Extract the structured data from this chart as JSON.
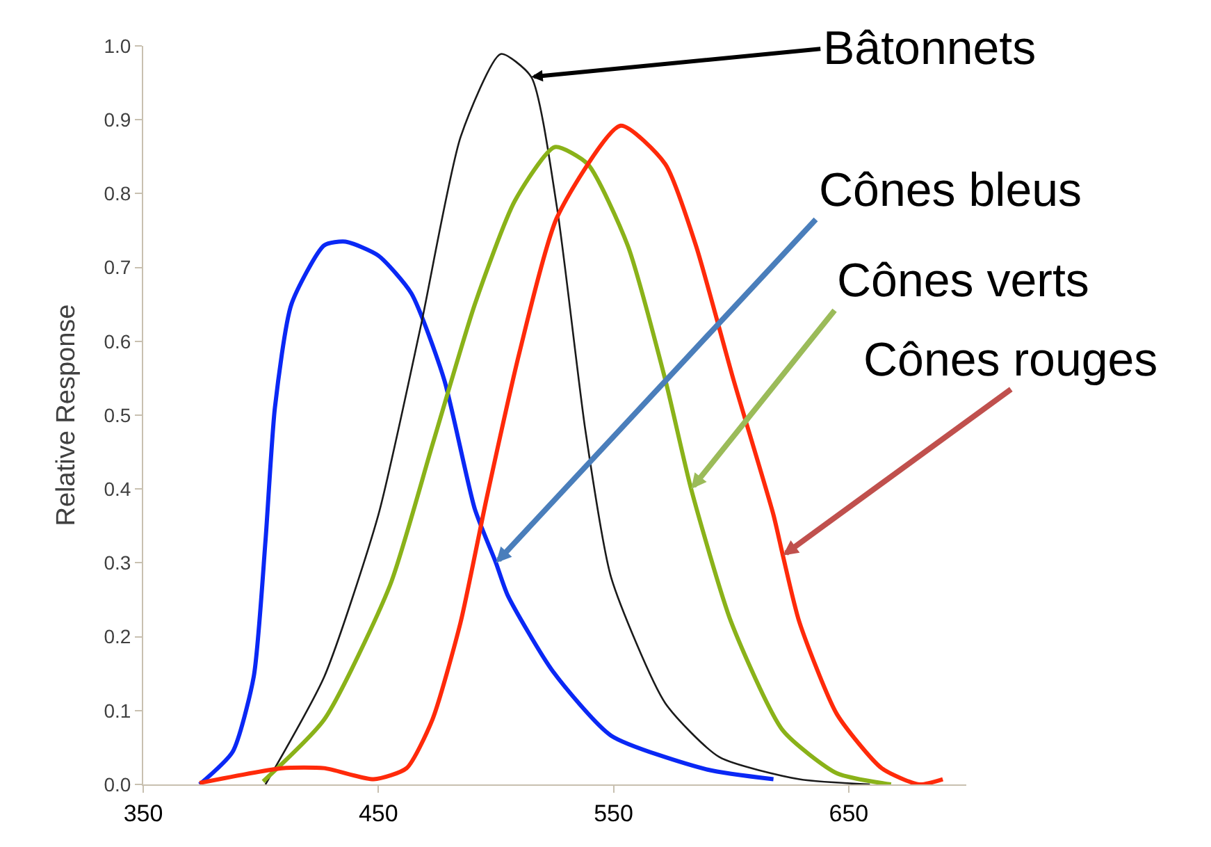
{
  "chart_data": {
    "type": "line",
    "ylabel": "Relative Response",
    "xlim": [
      350,
      700
    ],
    "ylim": [
      0,
      1.0
    ],
    "xticks": [
      350,
      450,
      550,
      650
    ],
    "yticks": [
      {
        "value": 0,
        "label": "0.0"
      },
      0.1,
      0.2,
      0.3,
      0.4,
      0.5,
      0.6,
      0.7,
      0.8,
      0.9,
      {
        "value": 1,
        "label": "1.0"
      }
    ],
    "marker": "none",
    "line_style": "solid",
    "series": [
      {
        "color": "#0a28f5",
        "x": [
          374,
          388,
          397,
          402,
          406,
          413,
          427,
          436,
          450,
          464,
          478,
          491,
          500,
          505,
          524,
          549,
          590,
          618
        ],
        "values": [
          0.0,
          0.044,
          0.146,
          0.33,
          0.51,
          0.65,
          0.73,
          0.735,
          0.716,
          0.665,
          0.548,
          0.373,
          0.3,
          0.256,
          0.154,
          0.066,
          0.02,
          0.007
        ]
      },
      {
        "color": "#1a1a1a",
        "x": [
          402,
          427,
          450,
          468,
          485,
          502,
          515,
          526,
          538,
          549,
          572,
          595,
          629,
          659
        ],
        "values": [
          0.0,
          0.146,
          0.365,
          0.62,
          0.877,
          0.989,
          0.958,
          0.78,
          0.48,
          0.28,
          0.11,
          0.037,
          0.007,
          0.0
        ]
      },
      {
        "color": "#8ab219",
        "x": [
          401,
          427,
          455,
          473,
          491,
          508,
          525,
          539,
          556,
          572,
          583,
          600,
          622,
          645,
          668
        ],
        "values": [
          0.004,
          0.088,
          0.27,
          0.46,
          0.65,
          0.79,
          0.863,
          0.84,
          0.73,
          0.548,
          0.4,
          0.22,
          0.073,
          0.015,
          0.0
        ]
      },
      {
        "color": "#ff2a0a",
        "x": [
          374,
          409,
          427,
          448,
          462,
          473,
          485,
          496,
          510,
          526,
          553,
          572,
          585,
          601,
          618,
          622,
          629,
          645,
          664,
          680,
          690
        ],
        "values": [
          0.002,
          0.022,
          0.022,
          0.007,
          0.022,
          0.088,
          0.22,
          0.387,
          0.585,
          0.768,
          0.892,
          0.84,
          0.73,
          0.548,
          0.365,
          0.31,
          0.22,
          0.095,
          0.022,
          0.0,
          0.007
        ]
      }
    ],
    "annotations": [
      {
        "text": "Bâtonnets",
        "x": 515,
        "y": 0.958
      },
      {
        "text": "Cônes bleus",
        "x": 500,
        "y": 0.3
      },
      {
        "text": "Cônes verts",
        "x": 583,
        "y": 0.4
      },
      {
        "text": "Cônes rouges",
        "x": 622,
        "y": 0.31
      }
    ]
  }
}
